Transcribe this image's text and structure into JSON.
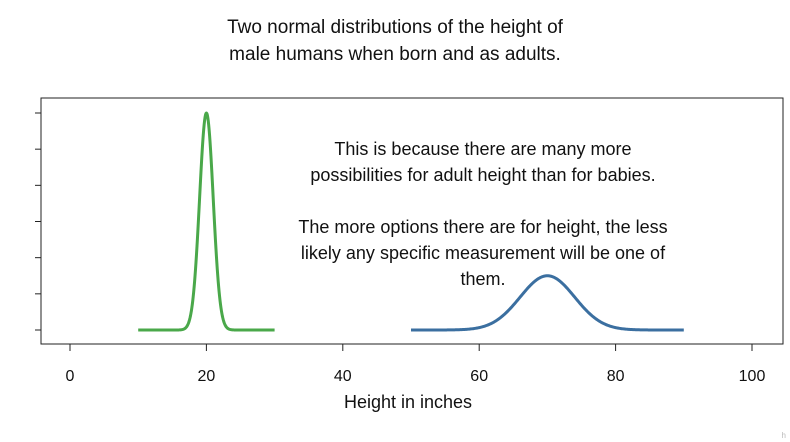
{
  "title_lines": [
    "Two normal distributions of the height of",
    "male humans when born and as adults."
  ],
  "annotation": {
    "paragraph1": [
      "This is because there are many more",
      "possibilities for adult height than for babies."
    ],
    "paragraph2": [
      "The more options there are for height, the less",
      "likely any specific measurement will be one of",
      "them."
    ]
  },
  "chart_data": {
    "type": "line",
    "title": "Two normal distributions of the height of male humans when born and as adults.",
    "xlabel": "Height in inches",
    "ylabel": "",
    "xlim": [
      0,
      100
    ],
    "x_ticks": [
      0,
      20,
      40,
      60,
      80,
      100
    ],
    "y_tick_labels_shown": false,
    "grid": false,
    "series": [
      {
        "distribution": "normal",
        "mean": 20,
        "sd": 1,
        "x_range": [
          10,
          30
        ],
        "color": "#4aa84a",
        "peak_density": 0.399
      },
      {
        "distribution": "normal",
        "mean": 70,
        "sd": 4,
        "x_range": [
          50,
          90
        ],
        "color": "#3b6fa0",
        "peak_density": 0.0997
      }
    ]
  }
}
